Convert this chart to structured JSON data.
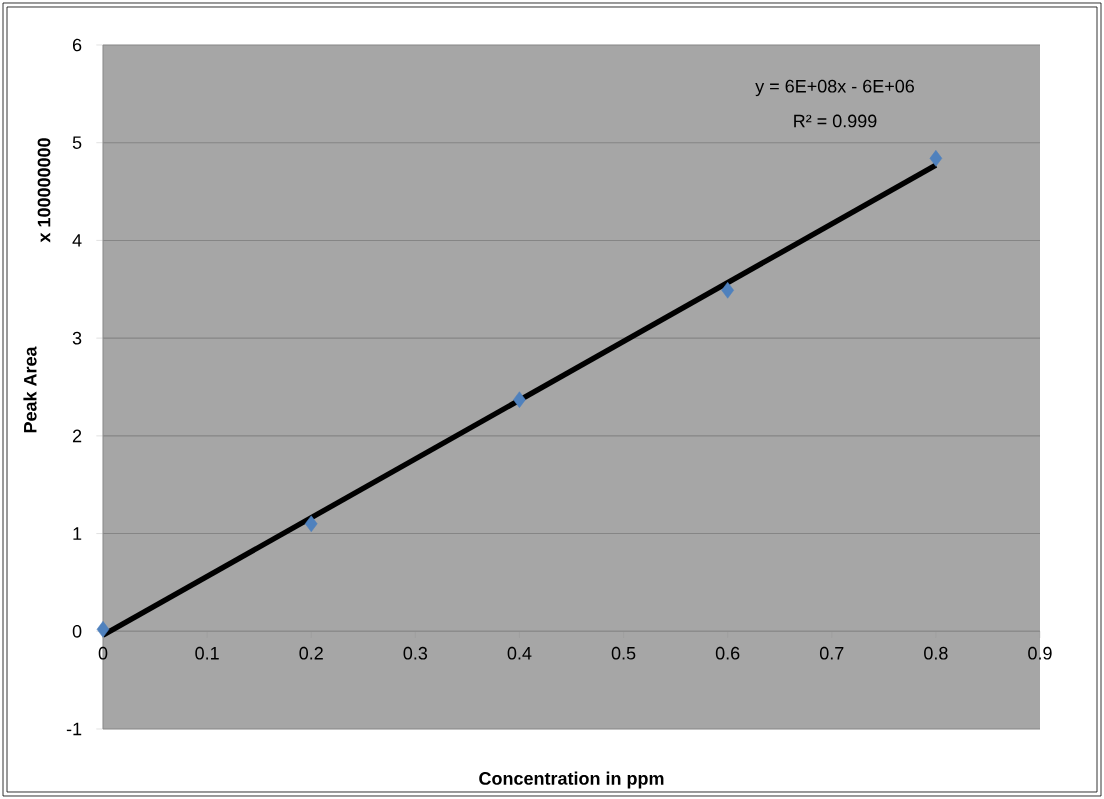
{
  "chart_data": {
    "type": "scatter",
    "xlabel": "Concentration in ppm",
    "ylabel": "Peak Area",
    "annotations": [
      "x 100000000",
      "y = 6E+08x - 6E+06",
      "R² = 0.999"
    ],
    "xlim": [
      0,
      0.9
    ],
    "ylim": [
      -1,
      6
    ],
    "xticks": [
      0,
      0.1,
      0.2,
      0.3,
      0.4,
      0.5,
      0.6,
      0.7,
      0.8,
      0.9
    ],
    "yticks": [
      -1,
      0,
      1,
      2,
      3,
      4,
      5,
      6
    ],
    "grid": "y",
    "series": [
      {
        "marker": "diamond",
        "color": "#4f81bd",
        "x": [
          0,
          0.2,
          0.4,
          0.6,
          0.8
        ],
        "values": [
          0.02,
          1.1,
          2.37,
          3.49,
          4.84
        ]
      },
      {
        "type": "line",
        "marker": "none",
        "color": "#000000",
        "x": [
          0,
          0.8
        ],
        "values": [
          -0.04,
          4.77
        ]
      }
    ]
  }
}
